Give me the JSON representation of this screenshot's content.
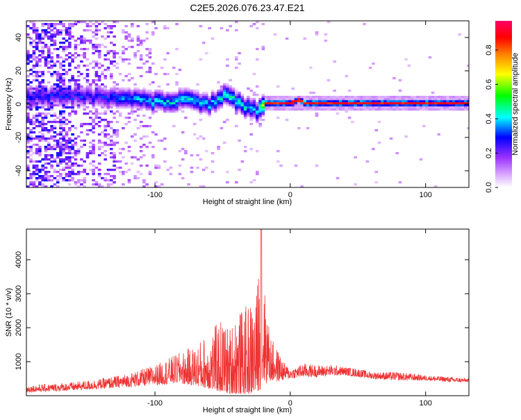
{
  "chart_data": [
    {
      "type": "heatmap",
      "title": "C2E5.2026.076.23.47.E21",
      "xlabel": "Height of straight line (km)",
      "ylabel": "Frequency (Hz)",
      "xlim": [
        -195,
        132
      ],
      "ylim": [
        -50,
        50
      ],
      "xticks": [
        -100,
        0,
        100
      ],
      "yticks": [
        -40,
        -20,
        0,
        20,
        40
      ],
      "colorbar": {
        "label": "Normalized spectral amplitude",
        "range": [
          0.0,
          0.97
        ],
        "ticks": [
          "0.0",
          "0.2",
          "0.4",
          "0.6",
          "0.8"
        ],
        "tick_values": [
          0.0,
          0.2,
          0.4,
          0.6,
          0.8
        ],
        "colors": [
          "#ffffff",
          "#d9a6ff",
          "#9b30ff",
          "#0000ff",
          "#00ffff",
          "#00ff00",
          "#ffff00",
          "#ff8000",
          "#ff0000",
          "#ff0066"
        ]
      },
      "ridge": {
        "description_points_x": [
          -140,
          -120,
          -100,
          -80,
          -60,
          -50,
          -40,
          -30,
          -25,
          -20,
          -10,
          0,
          5,
          10,
          20,
          50,
          100,
          130
        ],
        "center_freq_hz": [
          4,
          2,
          1,
          2,
          -1,
          5,
          1,
          -4,
          -5,
          0,
          0,
          0,
          2,
          0,
          0,
          0,
          0,
          0
        ],
        "peak_amplitude": [
          0.35,
          0.45,
          0.5,
          0.5,
          0.5,
          0.55,
          0.55,
          0.5,
          0.5,
          0.9,
          0.9,
          0.9,
          0.85,
          0.9,
          0.9,
          0.9,
          0.9,
          0.9
        ]
      }
    },
    {
      "type": "line",
      "xlabel": "Height of straight line (km)",
      "ylabel": "SNR (10 * v/v)",
      "xlim": [
        -195,
        132
      ],
      "ylim": [
        0,
        4900
      ],
      "xticks": [
        -100,
        0,
        100
      ],
      "yticks": [
        1000,
        2000,
        3000,
        4000
      ],
      "series": [
        {
          "name": "SNR",
          "color": "#ee3333",
          "envelope_x": [
            -195,
            -160,
            -140,
            -120,
            -100,
            -80,
            -70,
            -60,
            -50,
            -45,
            -40,
            -35,
            -30,
            -25,
            -22,
            -20,
            -15,
            -10,
            -5,
            0,
            10,
            20,
            30,
            40,
            50,
            60,
            80,
            100,
            120,
            132
          ],
          "envelope_max": [
            300,
            400,
            500,
            650,
            900,
            1300,
            1500,
            1900,
            2300,
            2000,
            2600,
            2500,
            2800,
            3000,
            4900,
            3500,
            1800,
            1400,
            1000,
            800,
            950,
            900,
            900,
            850,
            800,
            700,
            700,
            600,
            550,
            500
          ],
          "envelope_min": [
            100,
            150,
            200,
            250,
            300,
            350,
            300,
            200,
            100,
            50,
            50,
            50,
            50,
            100,
            200,
            300,
            400,
            400,
            450,
            500,
            550,
            550,
            600,
            600,
            550,
            500,
            450,
            450,
            400,
            400
          ]
        }
      ]
    }
  ]
}
